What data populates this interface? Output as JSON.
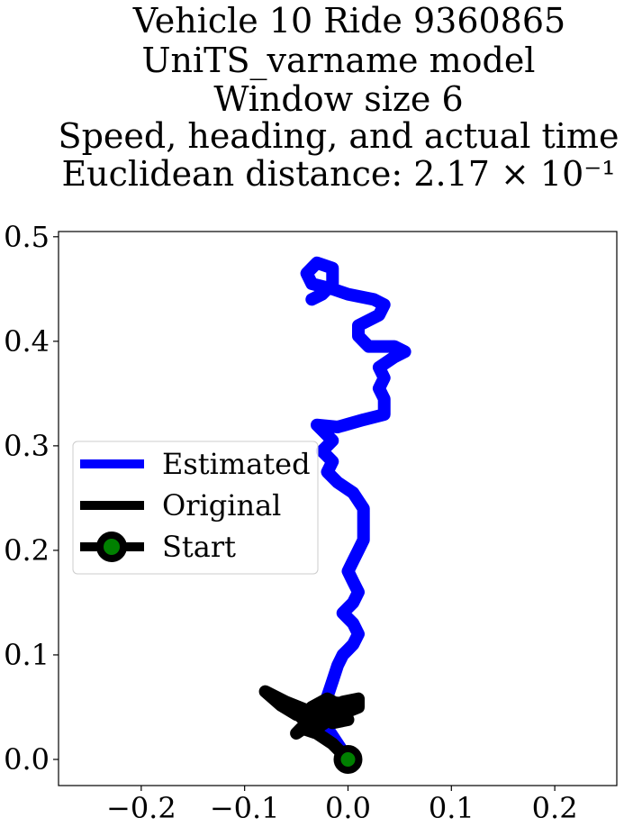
{
  "chart_data": {
    "type": "line",
    "title_lines": [
      "Vehicle 10 Ride 9360865",
      "UniTS_varname model",
      "Window size 6",
      "Speed, heading, and actual time",
      "Euclidean distance: 2.17 × 10⁻¹"
    ],
    "xlabel": "",
    "ylabel": "",
    "xlim": [
      -0.28,
      0.26
    ],
    "ylim": [
      -0.025,
      0.505
    ],
    "x_ticks": [
      -0.2,
      -0.1,
      0.0,
      0.1,
      0.2
    ],
    "x_tick_labels": [
      "−0.2",
      "−0.1",
      "0.0",
      "0.1",
      "0.2"
    ],
    "y_ticks": [
      0.0,
      0.1,
      0.2,
      0.3,
      0.4,
      0.5
    ],
    "y_tick_labels": [
      "0.0",
      "0.1",
      "0.2",
      "0.3",
      "0.4",
      "0.5"
    ],
    "grid": false,
    "legend_position": "center-left",
    "legend": [
      {
        "label": "Estimated",
        "color": "#0000ff",
        "marker": "none"
      },
      {
        "label": "Original",
        "color": "#000000",
        "marker": "none"
      },
      {
        "label": "Start",
        "color": "#000000",
        "marker": "circle",
        "marker_face": "#008000"
      }
    ],
    "series": [
      {
        "name": "Estimated",
        "color": "#0000ff",
        "points": [
          [
            0.0,
            0.0
          ],
          [
            -0.01,
            0.015
          ],
          [
            -0.02,
            0.03
          ],
          [
            -0.025,
            0.05
          ],
          [
            -0.02,
            0.06
          ],
          [
            -0.015,
            0.075
          ],
          [
            -0.01,
            0.09
          ],
          [
            -0.005,
            0.1
          ],
          [
            0.0,
            0.105
          ],
          [
            0.005,
            0.11
          ],
          [
            0.01,
            0.12
          ],
          [
            0.005,
            0.13
          ],
          [
            -0.005,
            0.14
          ],
          [
            0.005,
            0.15
          ],
          [
            0.01,
            0.16
          ],
          [
            0.005,
            0.17
          ],
          [
            0.0,
            0.18
          ],
          [
            0.005,
            0.19
          ],
          [
            0.01,
            0.2
          ],
          [
            0.015,
            0.21
          ],
          [
            0.015,
            0.22
          ],
          [
            0.015,
            0.23
          ],
          [
            0.015,
            0.24
          ],
          [
            0.005,
            0.255
          ],
          [
            -0.01,
            0.265
          ],
          [
            -0.02,
            0.275
          ],
          [
            -0.015,
            0.285
          ],
          [
            -0.025,
            0.295
          ],
          [
            -0.015,
            0.305
          ],
          [
            -0.025,
            0.315
          ],
          [
            -0.03,
            0.32
          ],
          [
            -0.01,
            0.318
          ],
          [
            0.015,
            0.325
          ],
          [
            0.035,
            0.33
          ],
          [
            0.035,
            0.345
          ],
          [
            0.03,
            0.355
          ],
          [
            0.035,
            0.365
          ],
          [
            0.03,
            0.375
          ],
          [
            0.045,
            0.385
          ],
          [
            0.055,
            0.39
          ],
          [
            0.045,
            0.395
          ],
          [
            0.02,
            0.395
          ],
          [
            0.01,
            0.405
          ],
          [
            0.01,
            0.415
          ],
          [
            0.03,
            0.425
          ],
          [
            0.035,
            0.435
          ],
          [
            0.025,
            0.44
          ],
          [
            0.0,
            0.445
          ],
          [
            -0.015,
            0.45
          ],
          [
            -0.035,
            0.455
          ],
          [
            -0.04,
            0.465
          ],
          [
            -0.03,
            0.475
          ],
          [
            -0.015,
            0.47
          ],
          [
            -0.015,
            0.455
          ],
          [
            -0.025,
            0.445
          ],
          [
            -0.035,
            0.44
          ]
        ]
      },
      {
        "name": "Original",
        "color": "#000000",
        "points": [
          [
            0.0,
            0.0
          ],
          [
            -0.015,
            0.015
          ],
          [
            -0.03,
            0.025
          ],
          [
            -0.045,
            0.03
          ],
          [
            -0.05,
            0.025
          ],
          [
            -0.035,
            0.035
          ],
          [
            -0.02,
            0.045
          ],
          [
            -0.005,
            0.055
          ],
          [
            0.01,
            0.058
          ],
          [
            0.01,
            0.05
          ],
          [
            -0.01,
            0.042
          ],
          [
            -0.03,
            0.036
          ],
          [
            -0.05,
            0.043
          ],
          [
            -0.065,
            0.052
          ],
          [
            -0.08,
            0.065
          ],
          [
            -0.06,
            0.055
          ],
          [
            -0.035,
            0.045
          ],
          [
            -0.015,
            0.035
          ],
          [
            0.0,
            0.038
          ],
          [
            -0.005,
            0.05
          ],
          [
            -0.02,
            0.058
          ],
          [
            -0.035,
            0.05
          ],
          [
            -0.045,
            0.04
          ],
          [
            -0.03,
            0.03
          ],
          [
            -0.015,
            0.04
          ],
          [
            0.005,
            0.048
          ],
          [
            -0.01,
            0.054
          ],
          [
            -0.025,
            0.046
          ],
          [
            -0.04,
            0.035
          ],
          [
            -0.03,
            0.025
          ]
        ]
      }
    ],
    "start_point": [
      0.0,
      0.0
    ]
  }
}
